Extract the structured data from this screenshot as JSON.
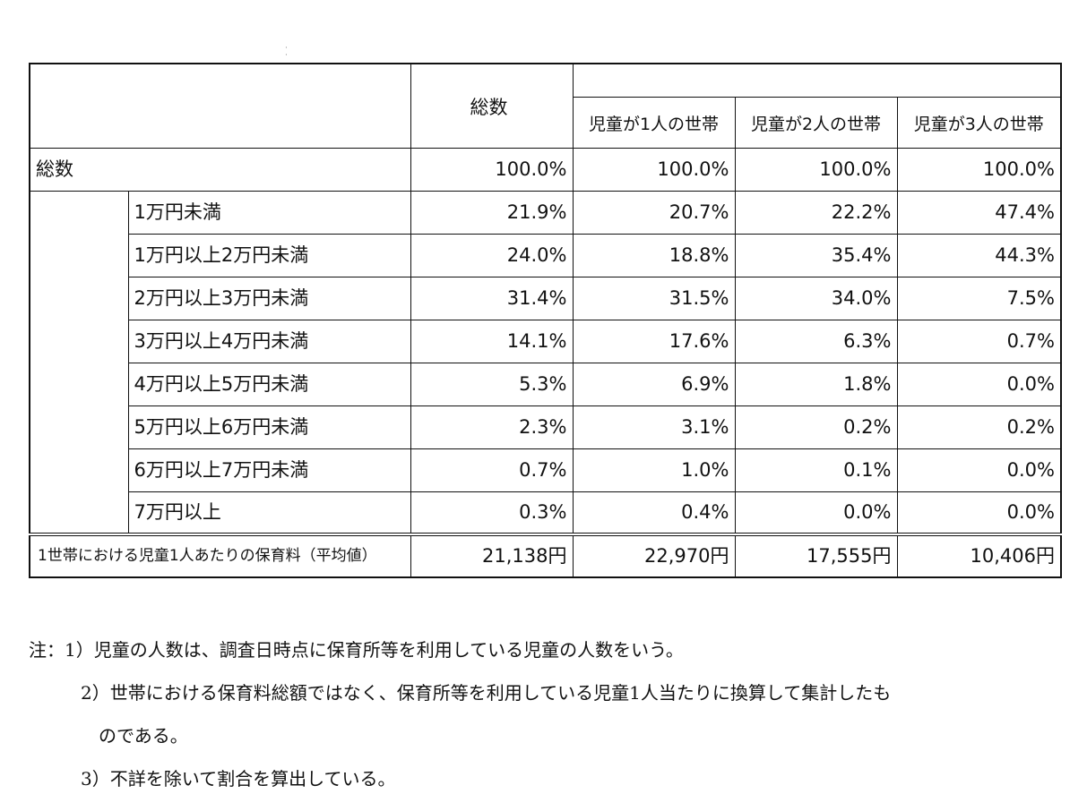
{
  "table": {
    "total_label": "総数",
    "column_headers": [
      "児童が1人の世帯",
      "児童が2人の世帯",
      "児童が3人の世帯"
    ],
    "total_row": {
      "label": "総数",
      "values": [
        "100.0%",
        "100.0%",
        "100.0%",
        "100.0%"
      ]
    },
    "rows": [
      {
        "label": "1万円未満",
        "values": [
          "21.9%",
          "20.7%",
          "22.2%",
          "47.4%"
        ]
      },
      {
        "label": "1万円以上2万円未満",
        "values": [
          "24.0%",
          "18.8%",
          "35.4%",
          "44.3%"
        ]
      },
      {
        "label": "2万円以上3万円未満",
        "values": [
          "31.4%",
          "31.5%",
          "34.0%",
          "7.5%"
        ]
      },
      {
        "label": "3万円以上4万円未満",
        "values": [
          "14.1%",
          "17.6%",
          "6.3%",
          "0.7%"
        ]
      },
      {
        "label": "4万円以上5万円未満",
        "values": [
          "5.3%",
          "6.9%",
          "1.8%",
          "0.0%"
        ]
      },
      {
        "label": "5万円以上6万円未満",
        "values": [
          "2.3%",
          "3.1%",
          "0.2%",
          "0.2%"
        ]
      },
      {
        "label": "6万円以上7万円未満",
        "values": [
          "0.7%",
          "1.0%",
          "0.1%",
          "0.0%"
        ]
      },
      {
        "label": "7万円以上",
        "values": [
          "0.3%",
          "0.4%",
          "0.0%",
          "0.0%"
        ]
      }
    ],
    "average_row": {
      "label": "1世帯における児童1人あたりの保育料（平均値）",
      "values": [
        "21,138円",
        "22,970円",
        "17,555円",
        "10,406円"
      ]
    }
  },
  "notes": [
    "注：1）児童の人数は、調査日時点に保育所等を利用している児童の人数をいう。",
    "2）世帯における保育料総額ではなく、保育所等を利用している児童1人当たりに換算して集計したも",
    "のである。",
    "3）不詳を除いて割合を算出している。"
  ]
}
